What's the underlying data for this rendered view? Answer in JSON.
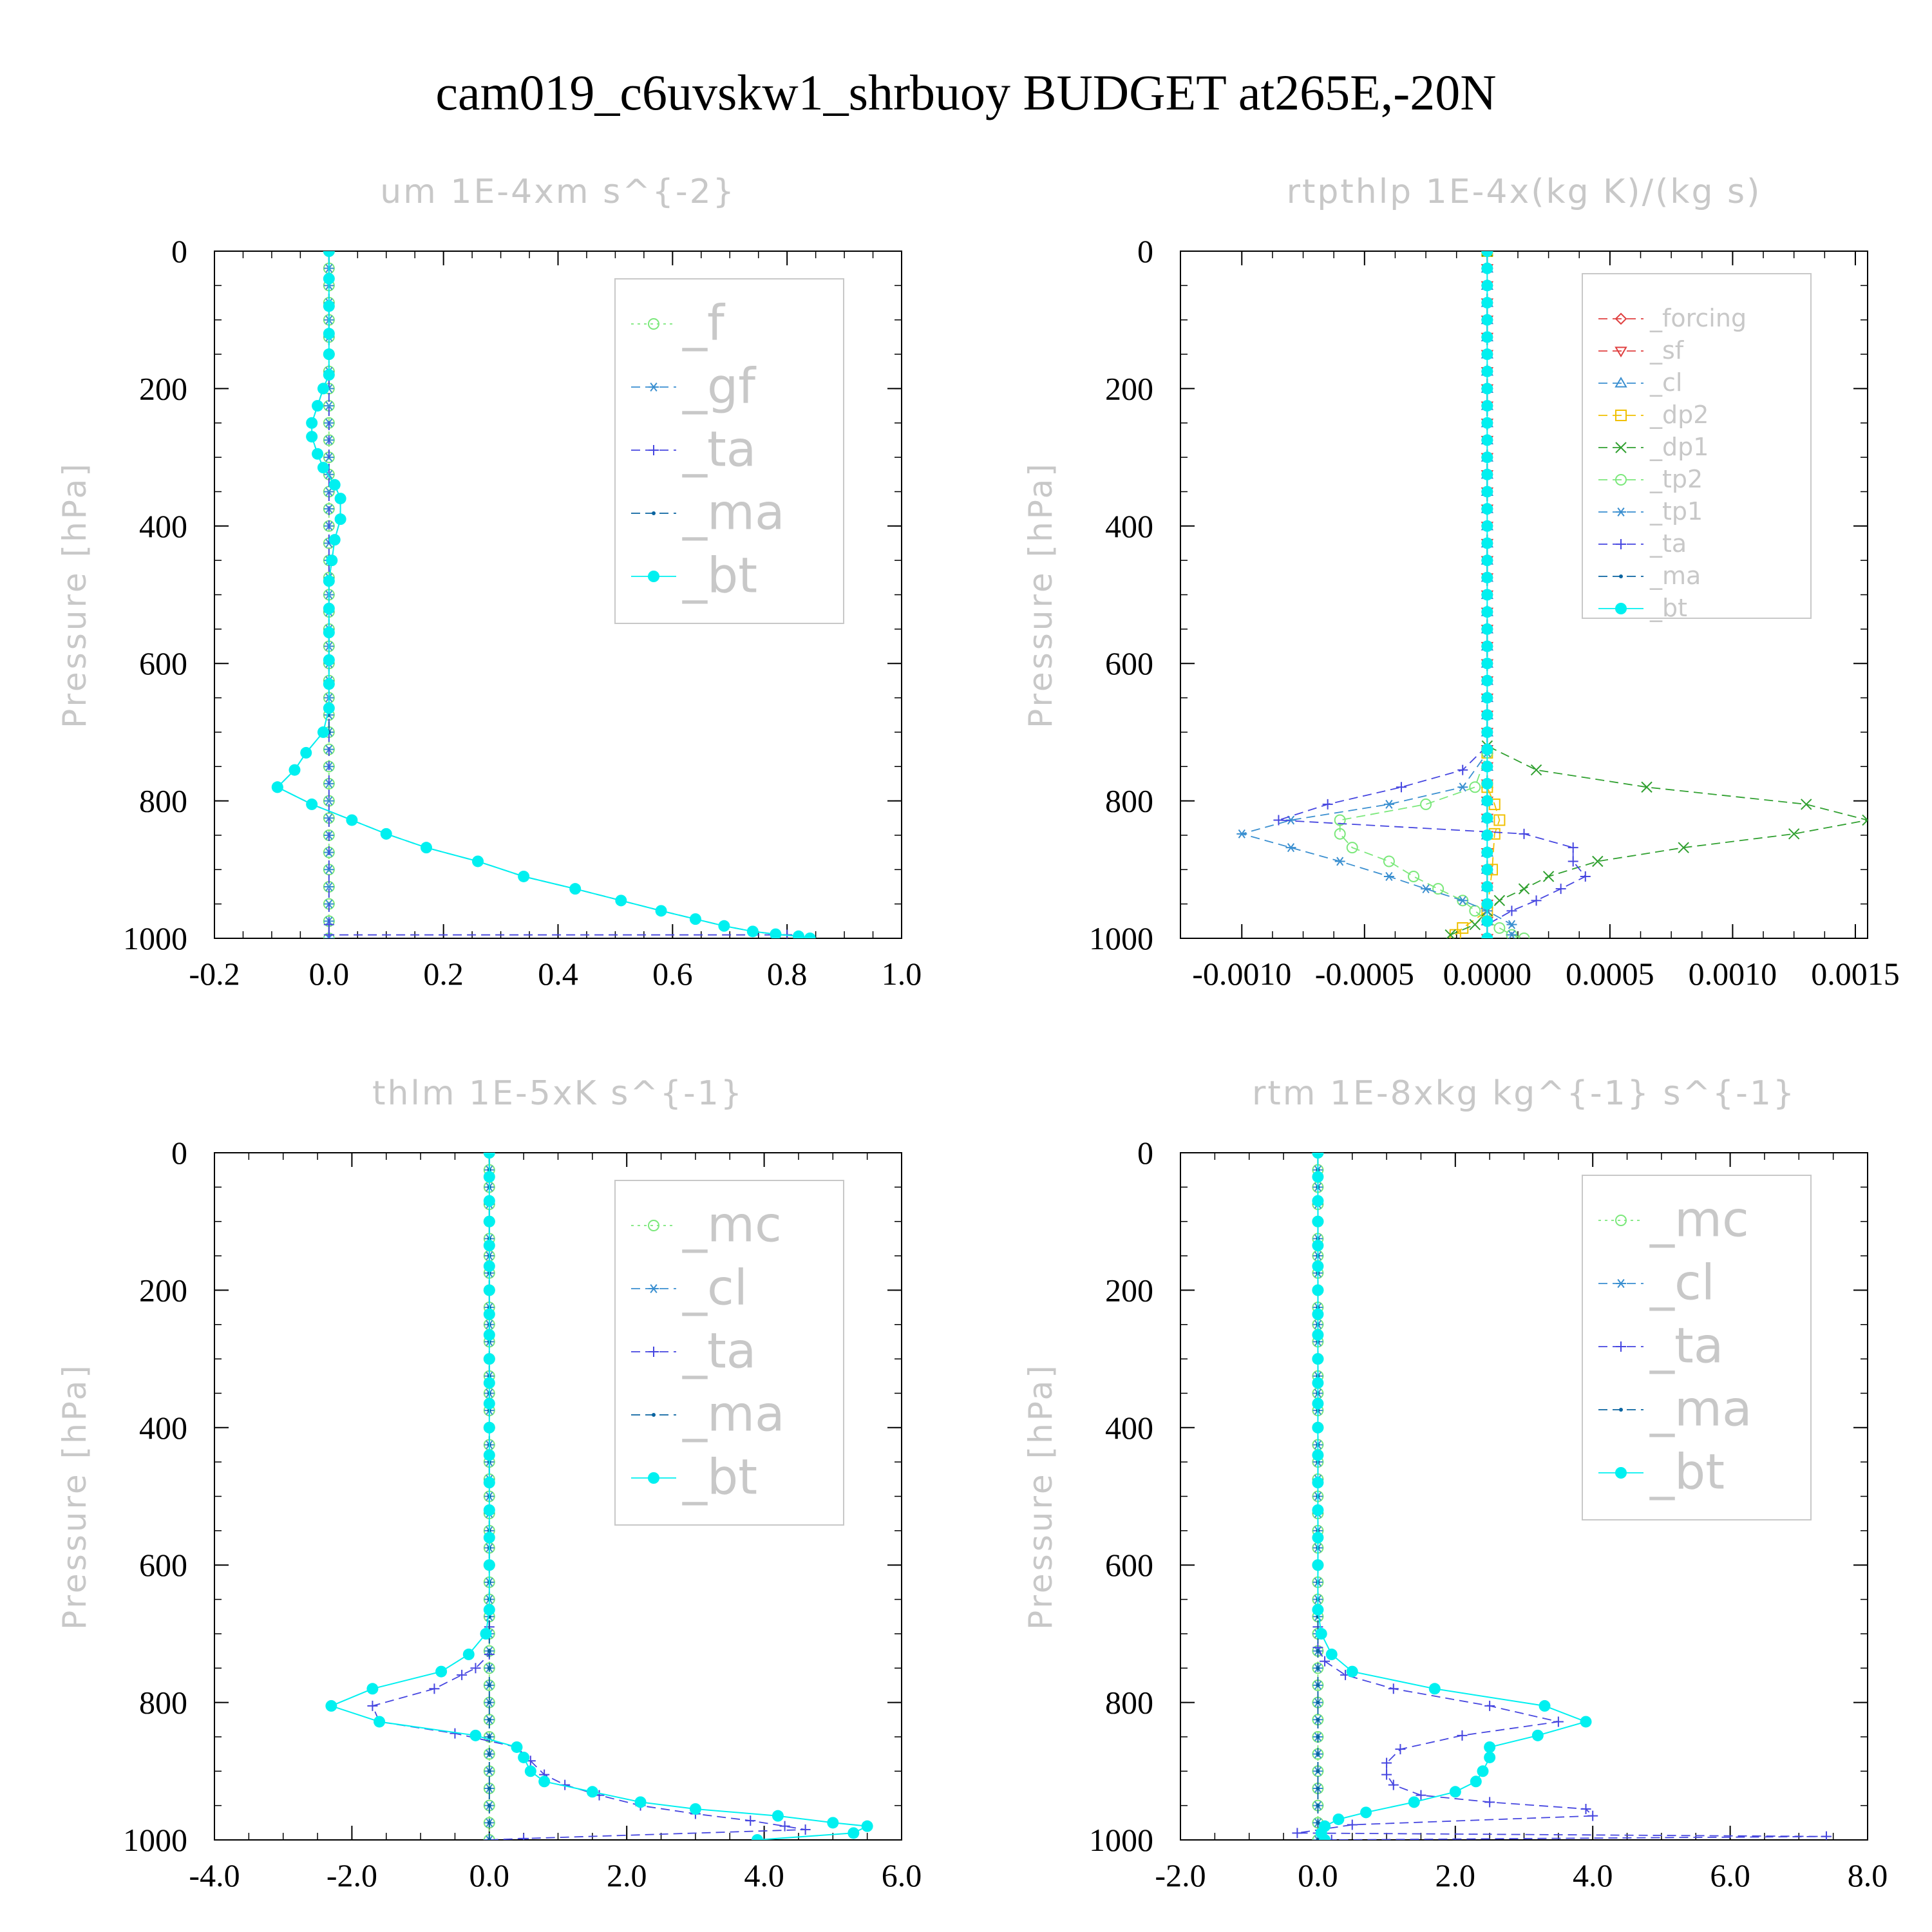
{
  "figure_title": "cam019_c6uvskw1_shrbuoy  BUDGET at265E,-20N",
  "ylabel": "Pressure [hPa]",
  "colors": {
    "_f": "#7be87b",
    "_gf": "#3a8fd0",
    "_ta": "#4646e0",
    "_ma": "#0a64a0",
    "_bt": "#00f0f0",
    "_forcing": "#e04040",
    "_sf": "#e04040",
    "_cl": "#3a8fd0",
    "_dp2": "#f0c000",
    "_dp1": "#30a030",
    "_tp2": "#7be87b",
    "_tp1": "#3a8fd0",
    "_mc": "#7be87b"
  },
  "chart_data": [
    {
      "type": "line",
      "title": "um  1E-4xm s^{-2}",
      "ylabel": "Pressure [hPa]",
      "xlim": [
        -0.2,
        1.0
      ],
      "ylim": [
        1000,
        0
      ],
      "x_ticks": [
        "-0.2",
        "0.0",
        "0.2",
        "0.4",
        "0.6",
        "0.8",
        "1.0"
      ],
      "y_ticks": [
        "0",
        "200",
        "400",
        "600",
        "800",
        "1000"
      ],
      "legend": [
        "_f",
        "_gf",
        "_ta",
        "_ma",
        "_bt"
      ],
      "legend_position": "upper-right",
      "series": [
        {
          "name": "_f",
          "marker": "circle-open",
          "line": "dotted",
          "x": [
            0,
            0
          ],
          "y": [
            0,
            1000
          ]
        },
        {
          "name": "_gf",
          "marker": "asterisk",
          "line": "dashed",
          "x": [
            0,
            0
          ],
          "y": [
            0,
            1000
          ]
        },
        {
          "name": "_ta",
          "marker": "plus",
          "line": "dashed",
          "x": [
            0,
            0,
            0,
            0.8
          ],
          "y": [
            0,
            980,
            995,
            995
          ]
        },
        {
          "name": "_ma",
          "marker": "dot",
          "line": "dashed",
          "x": [
            0,
            0,
            0,
            0,
            0,
            0,
            -0.01,
            -0.02,
            -0.03,
            -0.03,
            -0.02,
            -0.01,
            0.01,
            0.02,
            0.02,
            0.01,
            0.005,
            0,
            0,
            0,
            0,
            0,
            0,
            0,
            -0.01,
            -0.04,
            -0.06,
            -0.09,
            -0.09,
            -0.03,
            0.04,
            0.1,
            0.17,
            0.26,
            0.34,
            0.43,
            0.51,
            0.58,
            0.64,
            0.69,
            0.74,
            0.78,
            0.82,
            0.84
          ],
          "y": [
            0,
            40,
            80,
            120,
            150,
            180,
            200,
            225,
            250,
            270,
            295,
            315,
            340,
            360,
            390,
            420,
            450,
            480,
            520,
            555,
            595,
            630,
            665,
            700,
            700,
            730,
            755,
            780,
            780,
            805,
            828,
            848,
            868,
            888,
            910,
            928,
            945,
            960,
            972,
            982,
            990,
            994,
            997,
            1000
          ]
        },
        {
          "name": "_bt",
          "marker": "dot-filled",
          "line": "solid",
          "x": [
            0,
            0,
            0,
            0,
            0,
            0,
            -0.01,
            -0.02,
            -0.03,
            -0.03,
            -0.02,
            -0.01,
            0.01,
            0.02,
            0.02,
            0.01,
            0.005,
            0,
            0,
            0,
            0,
            0,
            0,
            -0.01,
            -0.04,
            -0.06,
            -0.09,
            -0.09,
            -0.03,
            0.04,
            0.1,
            0.17,
            0.26,
            0.34,
            0.43,
            0.51,
            0.58,
            0.64,
            0.69,
            0.74,
            0.78,
            0.82,
            0.84
          ],
          "y": [
            0,
            40,
            80,
            120,
            150,
            180,
            200,
            225,
            250,
            270,
            295,
            315,
            340,
            360,
            390,
            420,
            450,
            480,
            520,
            555,
            595,
            630,
            665,
            700,
            730,
            755,
            780,
            780,
            805,
            828,
            848,
            868,
            888,
            910,
            928,
            945,
            960,
            972,
            982,
            990,
            994,
            997,
            1000
          ]
        }
      ]
    },
    {
      "type": "line",
      "title": "rtpthlp  1E-4x(kg K)/(kg s)",
      "ylabel": "Pressure [hPa]",
      "xlim": [
        -0.00125,
        0.00155
      ],
      "ylim": [
        1000,
        0
      ],
      "x_ticks": [
        "-0.0010",
        "-0.0005",
        "0.0000",
        "0.0005",
        "0.0010",
        "0.0015"
      ],
      "y_ticks": [
        "0",
        "200",
        "400",
        "600",
        "800",
        "1000"
      ],
      "legend": [
        "_forcing",
        "_sf",
        "_cl",
        "_dp2",
        "_dp1",
        "_tp2",
        "_tp1",
        "_ta",
        "_ma",
        "_bt"
      ],
      "legend_position": "upper-right",
      "series": [
        {
          "name": "_forcing",
          "marker": "diamond-open",
          "line": "dashed",
          "x": [
            0,
            0
          ],
          "y": [
            0,
            1000
          ]
        },
        {
          "name": "_sf",
          "marker": "triangle-down-open",
          "line": "dashed",
          "x": [
            0,
            0
          ],
          "y": [
            0,
            1000
          ]
        },
        {
          "name": "_cl",
          "marker": "triangle-up-open",
          "line": "dashed",
          "x": [
            0,
            0
          ],
          "y": [
            0,
            1000
          ]
        },
        {
          "name": "_dp2",
          "marker": "square-open",
          "line": "dashed",
          "x": [
            0,
            0,
            0,
            3e-05,
            5e-05,
            3e-05,
            2e-05,
            0,
            -0.0001,
            -0.00013
          ],
          "y": [
            0,
            730,
            780,
            805,
            828,
            848,
            900,
            960,
            985,
            995
          ]
        },
        {
          "name": "_dp1",
          "marker": "x",
          "line": "dashed",
          "x": [
            0,
            0,
            0.0002,
            0.00065,
            0.0013,
            0.00155,
            0.00125,
            0.0008,
            0.00045,
            0.00025,
            0.00015,
            5e-05,
            0,
            -5e-05,
            -0.00015
          ],
          "y": [
            0,
            720,
            755,
            780,
            805,
            828,
            848,
            868,
            888,
            910,
            928,
            945,
            960,
            980,
            995
          ]
        },
        {
          "name": "_tp2",
          "marker": "circle-open",
          "line": "dashed",
          "x": [
            0,
            0,
            -5e-05,
            -0.00025,
            -0.0006,
            -0.0006,
            -0.00055,
            -0.0004,
            -0.0003,
            -0.0002,
            -0.0001,
            -5e-05,
            0,
            5e-05,
            0.0001,
            0.00015
          ],
          "y": [
            0,
            730,
            780,
            805,
            828,
            848,
            868,
            888,
            910,
            928,
            945,
            960,
            975,
            985,
            995,
            1000
          ]
        },
        {
          "name": "_tp1",
          "marker": "asterisk",
          "line": "dashed",
          "x": [
            0,
            0,
            -0.0001,
            -0.0004,
            -0.0008,
            -0.001,
            -0.0008,
            -0.0006,
            -0.0004,
            -0.00025,
            -0.0001,
            0,
            0.0001,
            0.0001
          ],
          "y": [
            0,
            730,
            780,
            805,
            828,
            848,
            868,
            888,
            910,
            928,
            945,
            960,
            980,
            995
          ]
        },
        {
          "name": "_ta",
          "marker": "plus",
          "line": "dashed",
          "x": [
            0,
            0,
            -0.0001,
            -0.00035,
            -0.00065,
            -0.00085,
            0.00015,
            0.00035,
            0.00035,
            0.0004,
            0.0003,
            0.0002,
            0.0001,
            0,
            0
          ],
          "y": [
            0,
            720,
            755,
            780,
            805,
            828,
            848,
            868,
            888,
            910,
            928,
            945,
            960,
            980,
            1000
          ]
        },
        {
          "name": "_ma",
          "marker": "dot",
          "line": "dashed",
          "x": [
            0,
            0
          ],
          "y": [
            0,
            1000
          ]
        },
        {
          "name": "_bt",
          "marker": "dot-filled",
          "line": "solid",
          "x": [
            0,
            0
          ],
          "y": [
            0,
            1000
          ]
        }
      ]
    },
    {
      "type": "line",
      "title": "thlm  1E-5xK s^{-1}",
      "ylabel": "Pressure [hPa]",
      "xlim": [
        -4.0,
        6.0
      ],
      "ylim": [
        1000,
        0
      ],
      "x_ticks": [
        "-4.0",
        "-2.0",
        "0.0",
        "2.0",
        "4.0",
        "6.0"
      ],
      "y_ticks": [
        "0",
        "200",
        "400",
        "600",
        "800",
        "1000"
      ],
      "legend": [
        "_mc",
        "_cl",
        "_ta",
        "_ma",
        "_bt"
      ],
      "legend_position": "upper-right",
      "series": [
        {
          "name": "_mc",
          "marker": "circle-open",
          "line": "dotted",
          "x": [
            0,
            0
          ],
          "y": [
            0,
            1000
          ]
        },
        {
          "name": "_cl",
          "marker": "asterisk",
          "line": "dashed",
          "x": [
            0,
            0
          ],
          "y": [
            0,
            1000
          ]
        },
        {
          "name": "_ta",
          "marker": "plus",
          "line": "dashed",
          "x": [
            0,
            0,
            0,
            -0.2,
            -0.4,
            -0.8,
            -1.7,
            -1.6,
            -0.5,
            0.4,
            0.6,
            0.8,
            1.1,
            1.6,
            2.2,
            3.0,
            3.8,
            4.3,
            4.6,
            0.5,
            0
          ],
          "y": [
            0,
            690,
            730,
            750,
            760,
            780,
            805,
            828,
            845,
            865,
            885,
            905,
            920,
            935,
            950,
            962,
            972,
            980,
            985,
            998,
            1000
          ]
        },
        {
          "name": "_ma",
          "marker": "dot",
          "line": "dashed",
          "x": [
            0,
            0
          ],
          "y": [
            0,
            1000
          ]
        },
        {
          "name": "_bt",
          "marker": "dot-filled",
          "line": "solid",
          "x": [
            0,
            0,
            0,
            0,
            0,
            0,
            0,
            0,
            0,
            0,
            0,
            0,
            0,
            0,
            0,
            0,
            0,
            0,
            0,
            -0.05,
            -0.3,
            -0.7,
            -1.7,
            -2.3,
            -1.6,
            -0.2,
            0.4,
            0.5,
            0.6,
            0.8,
            1.5,
            2.2,
            3.0,
            4.2,
            5.0,
            5.5,
            5.3,
            3.9
          ],
          "y": [
            0,
            35,
            70,
            100,
            135,
            165,
            200,
            235,
            265,
            300,
            335,
            365,
            400,
            440,
            480,
            520,
            560,
            600,
            665,
            700,
            730,
            755,
            780,
            805,
            828,
            848,
            865,
            880,
            900,
            915,
            930,
            945,
            955,
            965,
            975,
            980,
            990,
            1000
          ]
        }
      ]
    },
    {
      "type": "line",
      "title": "rtm  1E-8xkg kg^{-1} s^{-1}",
      "ylabel": "Pressure [hPa]",
      "xlim": [
        -2.0,
        8.0
      ],
      "ylim": [
        1000,
        0
      ],
      "x_ticks": [
        "-2.0",
        "0.0",
        "2.0",
        "4.0",
        "6.0",
        "8.0"
      ],
      "y_ticks": [
        "0",
        "200",
        "400",
        "600",
        "800",
        "1000"
      ],
      "legend": [
        "_mc",
        "_cl",
        "_ta",
        "_ma",
        "_bt"
      ],
      "legend_position": "upper-right",
      "series": [
        {
          "name": "_mc",
          "marker": "circle-open",
          "line": "dotted",
          "x": [
            0,
            0
          ],
          "y": [
            0,
            1000
          ]
        },
        {
          "name": "_cl",
          "marker": "asterisk",
          "line": "dashed",
          "x": [
            0,
            0
          ],
          "y": [
            0,
            1000
          ]
        },
        {
          "name": "_ta",
          "marker": "plus",
          "line": "dashed",
          "x": [
            0,
            0,
            0,
            0.1,
            0.4,
            1.1,
            2.5,
            3.5,
            2.1,
            1.2,
            1.0,
            1.0,
            1.1,
            1.5,
            2.5,
            3.9,
            4.0,
            0.5,
            -0.3,
            7.4,
            0.2
          ],
          "y": [
            0,
            690,
            720,
            740,
            760,
            780,
            805,
            828,
            848,
            868,
            888,
            905,
            920,
            935,
            945,
            955,
            965,
            978,
            990,
            995,
            1000
          ]
        },
        {
          "name": "_ma",
          "marker": "dot",
          "line": "dashed",
          "x": [
            0,
            0
          ],
          "y": [
            0,
            1000
          ]
        },
        {
          "name": "_bt",
          "marker": "dot-filled",
          "line": "solid",
          "x": [
            0,
            0,
            0,
            0,
            0,
            0,
            0,
            0,
            0,
            0,
            0,
            0,
            0,
            0,
            0,
            0,
            0,
            0,
            0,
            0.05,
            0.2,
            0.5,
            1.7,
            3.3,
            3.9,
            3.2,
            2.5,
            2.5,
            2.4,
            2.3,
            2.0,
            1.4,
            0.7,
            0.3,
            0.1,
            0.05,
            0.1
          ],
          "y": [
            0,
            35,
            70,
            100,
            135,
            165,
            200,
            235,
            265,
            300,
            335,
            365,
            400,
            440,
            480,
            520,
            560,
            600,
            665,
            700,
            730,
            755,
            780,
            805,
            828,
            848,
            865,
            880,
            900,
            915,
            930,
            945,
            960,
            970,
            980,
            990,
            1000
          ]
        }
      ]
    }
  ]
}
